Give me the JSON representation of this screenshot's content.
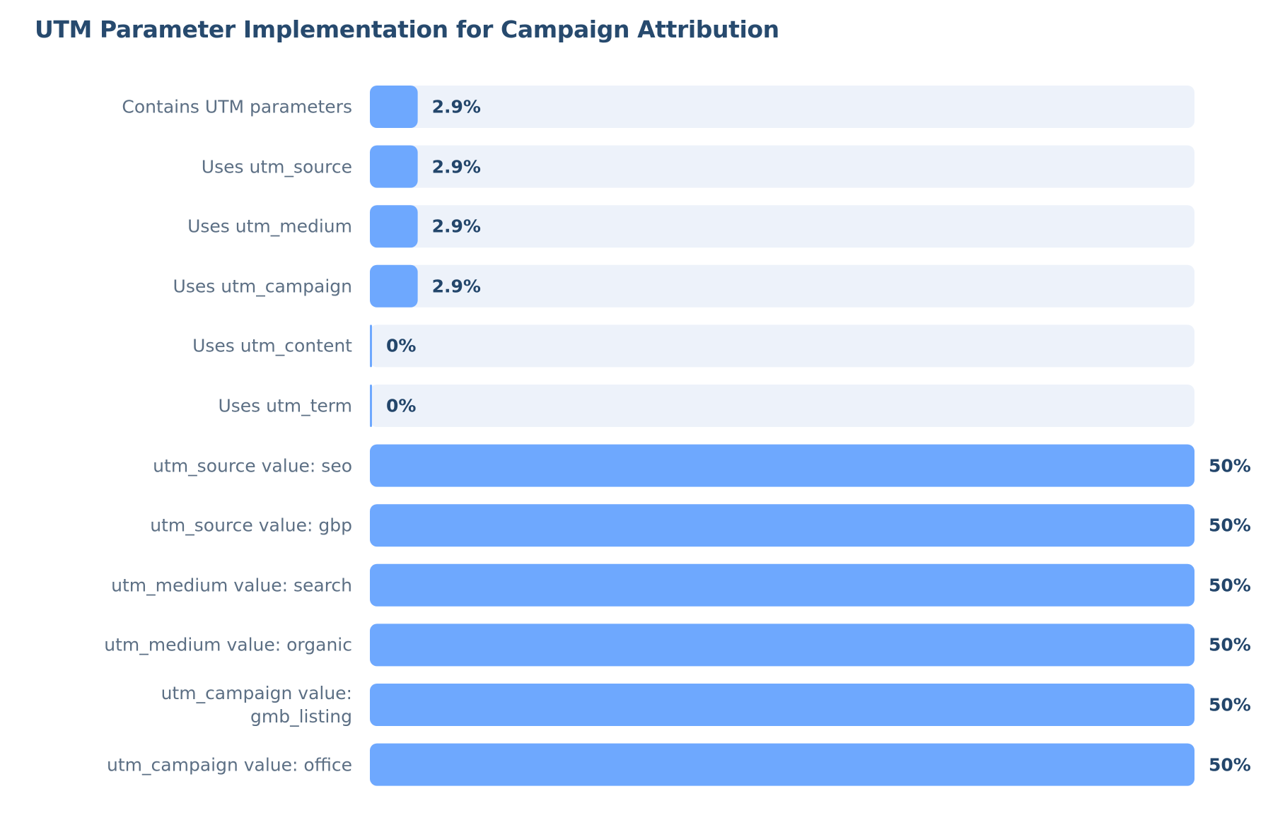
{
  "chart_data": {
    "type": "bar",
    "orientation": "horizontal",
    "title": "UTM Parameter Implementation for Campaign Attribution",
    "categories": [
      "Contains UTM parameters",
      "Uses utm_source",
      "Uses utm_medium",
      "Uses utm_campaign",
      "Uses utm_content",
      "Uses utm_term",
      "utm_source value: seo",
      "utm_source value: gbp",
      "utm_medium value: search",
      "utm_medium value: organic",
      "utm_campaign value: gmb_listing",
      "utm_campaign value: office"
    ],
    "values": [
      2.9,
      2.9,
      2.9,
      2.9,
      0,
      0,
      50,
      50,
      50,
      50,
      50,
      50
    ],
    "value_labels": [
      "2.9%",
      "2.9%",
      "2.9%",
      "2.9%",
      "0%",
      "0%",
      "50%",
      "50%",
      "50%",
      "50%",
      "50%",
      "50%"
    ],
    "xlim": [
      0,
      50
    ],
    "xlabel": "",
    "ylabel": "",
    "grid": false,
    "legend": "none",
    "colors": {
      "bar": "#6ea8fe",
      "track": "#edf2fa",
      "title": "#274a6e",
      "category_label": "#5c6f84",
      "value_label": "#23466b"
    }
  }
}
